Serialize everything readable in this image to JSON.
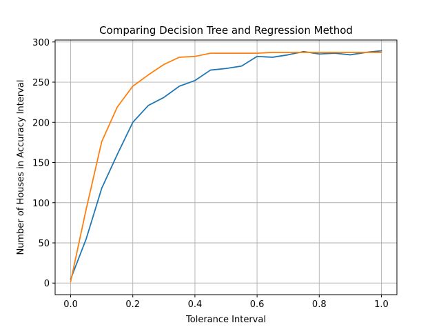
{
  "chart_data": {
    "type": "line",
    "title": "Comparing Decision Tree and Regression Method",
    "xlabel": "Tolerance Interval",
    "ylabel": "Number of Houses in Accuracy Interval",
    "xlim": [
      -0.05,
      1.05
    ],
    "ylim": [
      -14.4,
      302.4
    ],
    "xticks": [
      0.0,
      0.2,
      0.4,
      0.6,
      0.8,
      1.0
    ],
    "xtick_labels": [
      "0.0",
      "0.2",
      "0.4",
      "0.6",
      "0.8",
      "1.0"
    ],
    "yticks": [
      0,
      50,
      100,
      150,
      200,
      250,
      300
    ],
    "ytick_labels": [
      "0",
      "50",
      "100",
      "150",
      "200",
      "250",
      "300"
    ],
    "grid": true,
    "legend": "none",
    "x": [
      0.0,
      0.05,
      0.1,
      0.15,
      0.2,
      0.25,
      0.3,
      0.35,
      0.4,
      0.45,
      0.5,
      0.55,
      0.6,
      0.65,
      0.7,
      0.75,
      0.8,
      0.85,
      0.9,
      0.95,
      1.0
    ],
    "series": [
      {
        "color": "#1f77b4",
        "values": [
          5,
          55,
          118,
          160,
          200,
          221,
          231,
          245,
          252,
          265,
          267,
          270,
          282,
          281,
          284,
          288,
          285,
          286,
          284,
          287,
          289
        ]
      },
      {
        "color": "#ff7f0e",
        "values": [
          2,
          92,
          176,
          219,
          245,
          259,
          272,
          281,
          282,
          286,
          286,
          286,
          286,
          287,
          287,
          287,
          287,
          287,
          287,
          287,
          287
        ]
      }
    ]
  }
}
